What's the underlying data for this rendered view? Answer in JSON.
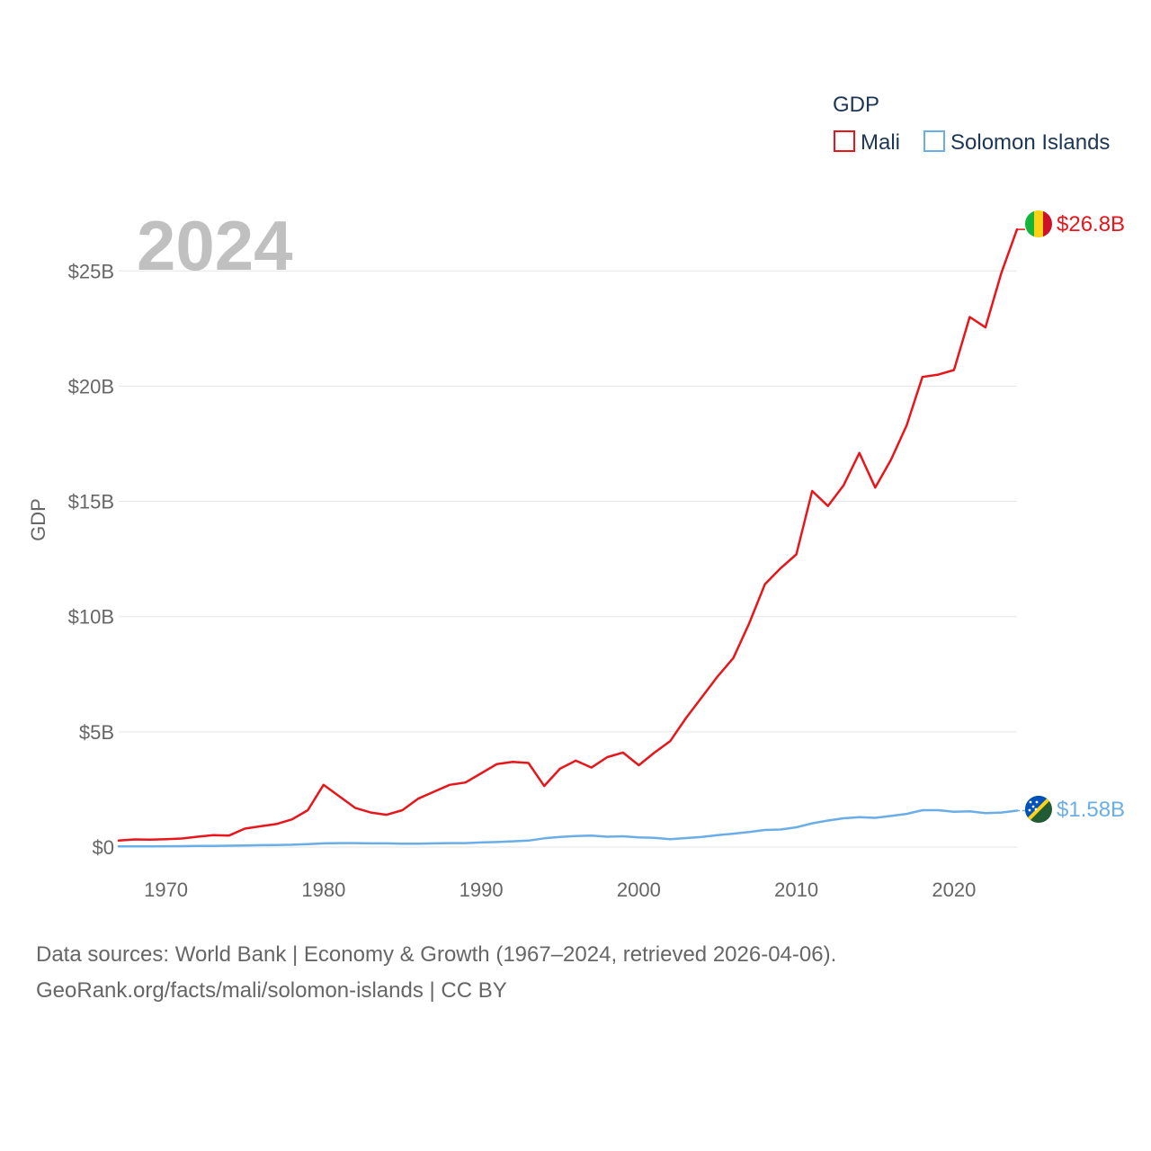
{
  "chart_data": {
    "type": "line",
    "year_label": "2024",
    "ylabel": "GDP",
    "legend_title": "GDP",
    "ylim": [
      0,
      27
    ],
    "xlim": [
      1967,
      2024
    ],
    "y_ticks": [
      {
        "value": 0,
        "label": "$0"
      },
      {
        "value": 5,
        "label": "$5B"
      },
      {
        "value": 10,
        "label": "$10B"
      },
      {
        "value": 15,
        "label": "$15B"
      },
      {
        "value": 20,
        "label": "$20B"
      },
      {
        "value": 25,
        "label": "$25B"
      }
    ],
    "x_ticks": [
      1970,
      1980,
      1990,
      2000,
      2010,
      2020
    ],
    "series": [
      {
        "name": "Mali",
        "color": "#e8151b",
        "end_label": "$26.8B",
        "flag_icon": "mali-flag-icon",
        "x": [
          1967,
          1968,
          1969,
          1970,
          1971,
          1972,
          1973,
          1974,
          1975,
          1976,
          1977,
          1978,
          1979,
          1980,
          1981,
          1982,
          1983,
          1984,
          1985,
          1986,
          1987,
          1988,
          1989,
          1990,
          1991,
          1992,
          1993,
          1994,
          1995,
          1996,
          1997,
          1998,
          1999,
          2000,
          2001,
          2002,
          2003,
          2004,
          2005,
          2006,
          2007,
          2008,
          2009,
          2010,
          2011,
          2012,
          2013,
          2014,
          2015,
          2016,
          2017,
          2018,
          2019,
          2020,
          2021,
          2022,
          2023,
          2024
        ],
        "values": [
          0.28,
          0.33,
          0.32,
          0.34,
          0.37,
          0.45,
          0.52,
          0.5,
          0.8,
          0.9,
          1.0,
          1.2,
          1.6,
          2.7,
          2.2,
          1.7,
          1.5,
          1.4,
          1.6,
          2.1,
          2.4,
          2.7,
          2.8,
          3.2,
          3.6,
          3.7,
          3.65,
          2.65,
          3.4,
          3.75,
          3.45,
          3.9,
          4.1,
          3.55,
          4.1,
          4.6,
          5.6,
          6.5,
          7.4,
          8.2,
          9.7,
          11.4,
          12.1,
          12.7,
          15.45,
          14.8,
          15.7,
          17.1,
          15.6,
          16.8,
          18.3,
          20.4,
          20.5,
          20.7,
          23.0,
          22.55,
          24.9,
          26.8
        ]
      },
      {
        "name": "Solomon Islands",
        "color": "#6aaee8",
        "end_label": "$1.58B",
        "flag_icon": "solomon-islands-flag-icon",
        "x": [
          1967,
          1968,
          1969,
          1970,
          1971,
          1972,
          1973,
          1974,
          1975,
          1976,
          1977,
          1978,
          1979,
          1980,
          1981,
          1982,
          1983,
          1984,
          1985,
          1986,
          1987,
          1988,
          1989,
          1990,
          1991,
          1992,
          1993,
          1994,
          1995,
          1996,
          1997,
          1998,
          1999,
          2000,
          2001,
          2002,
          2003,
          2004,
          2005,
          2006,
          2007,
          2008,
          2009,
          2010,
          2011,
          2012,
          2013,
          2014,
          2015,
          2016,
          2017,
          2018,
          2019,
          2020,
          2021,
          2022,
          2023,
          2024
        ],
        "values": [
          0.03,
          0.03,
          0.03,
          0.035,
          0.04,
          0.045,
          0.05,
          0.06,
          0.07,
          0.08,
          0.09,
          0.1,
          0.13,
          0.16,
          0.17,
          0.17,
          0.16,
          0.16,
          0.15,
          0.15,
          0.16,
          0.17,
          0.17,
          0.2,
          0.22,
          0.25,
          0.28,
          0.38,
          0.44,
          0.48,
          0.5,
          0.45,
          0.47,
          0.42,
          0.4,
          0.34,
          0.39,
          0.44,
          0.52,
          0.58,
          0.65,
          0.74,
          0.76,
          0.86,
          1.03,
          1.15,
          1.25,
          1.3,
          1.27,
          1.35,
          1.44,
          1.6,
          1.6,
          1.53,
          1.55,
          1.47,
          1.5,
          1.58
        ]
      }
    ]
  },
  "footer": {
    "line1": "Data sources: World Bank | Economy & Growth (1967–2024, retrieved 2026-04-06).",
    "line2": "GeoRank.org/facts/mali/solomon-islands | CC BY"
  }
}
